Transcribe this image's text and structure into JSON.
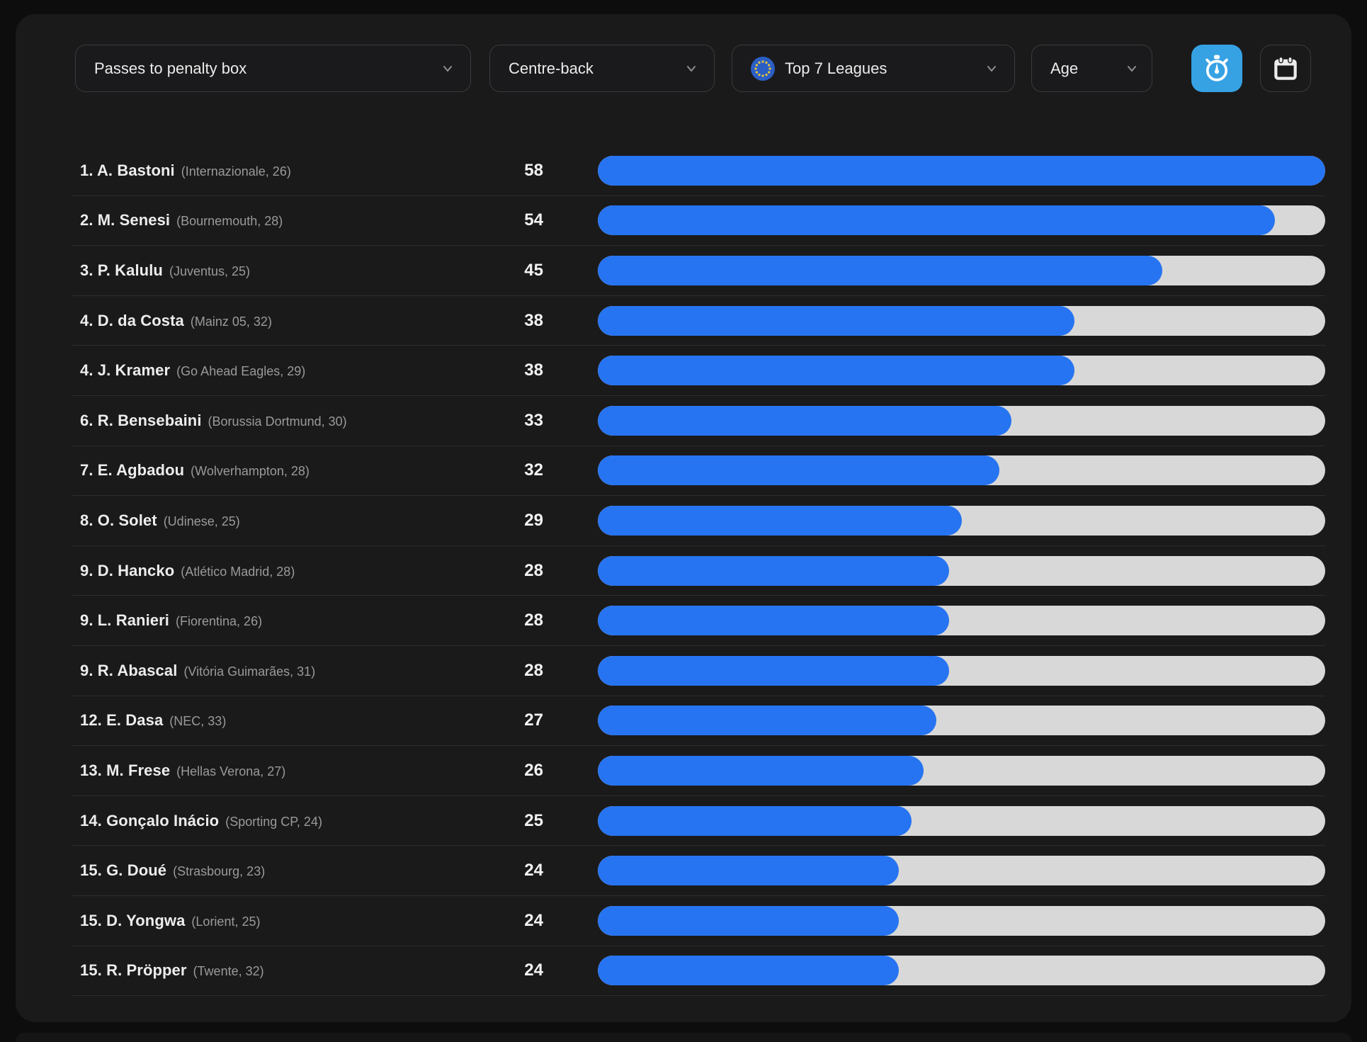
{
  "filters": {
    "metric_label": "Passes to penalty box",
    "position_label": "Centre-back",
    "league_label": "Top 7 Leagues",
    "age_label": "Age"
  },
  "icons": {
    "league_flag": "eu-flag-icon",
    "dropdown_chevron": "chevron-down-icon",
    "timer_button": "timer-icon",
    "calendar_button": "calendar-icon"
  },
  "colors": {
    "page_bg": "#0d0d0e",
    "card_bg": "#1a1a1b",
    "bar_fill": "#2674f1",
    "bar_track": "#d8d8d8",
    "active_button": "#36a2e4",
    "eu_flag_blue": "#2c5fc4",
    "divider": "#2c2d2f"
  },
  "leaderboard": {
    "max_value": 58,
    "players": [
      {
        "rank": "1.",
        "name": "A. Bastoni",
        "meta": "(Internazionale, 26)",
        "value": 58
      },
      {
        "rank": "2.",
        "name": "M. Senesi",
        "meta": "(Bournemouth, 28)",
        "value": 54
      },
      {
        "rank": "3.",
        "name": "P. Kalulu",
        "meta": "(Juventus, 25)",
        "value": 45
      },
      {
        "rank": "4.",
        "name": "D. da Costa",
        "meta": "(Mainz 05, 32)",
        "value": 38
      },
      {
        "rank": "4.",
        "name": "J. Kramer",
        "meta": "(Go Ahead Eagles, 29)",
        "value": 38
      },
      {
        "rank": "6.",
        "name": "R. Bensebaini",
        "meta": "(Borussia Dortmund, 30)",
        "value": 33
      },
      {
        "rank": "7.",
        "name": "E. Agbadou",
        "meta": "(Wolverhampton, 28)",
        "value": 32
      },
      {
        "rank": "8.",
        "name": "O. Solet",
        "meta": "(Udinese, 25)",
        "value": 29
      },
      {
        "rank": "9.",
        "name": "D. Hancko",
        "meta": "(Atlético Madrid, 28)",
        "value": 28
      },
      {
        "rank": "9.",
        "name": "L. Ranieri",
        "meta": "(Fiorentina, 26)",
        "value": 28
      },
      {
        "rank": "9.",
        "name": "R. Abascal",
        "meta": "(Vitória Guimarães, 31)",
        "value": 28
      },
      {
        "rank": "12.",
        "name": "E. Dasa",
        "meta": "(NEC, 33)",
        "value": 27
      },
      {
        "rank": "13.",
        "name": "M. Frese",
        "meta": "(Hellas Verona, 27)",
        "value": 26
      },
      {
        "rank": "14.",
        "name": "Gonçalo Inácio",
        "meta": "(Sporting CP, 24)",
        "value": 25
      },
      {
        "rank": "15.",
        "name": "G. Doué",
        "meta": "(Strasbourg, 23)",
        "value": 24
      },
      {
        "rank": "15.",
        "name": "D. Yongwa",
        "meta": "(Lorient, 25)",
        "value": 24
      },
      {
        "rank": "15.",
        "name": "R. Pröpper",
        "meta": "(Twente, 32)",
        "value": 24
      }
    ]
  },
  "chart_data": {
    "type": "bar",
    "orientation": "horizontal",
    "title": "Passes to penalty box — Centre-back — Top 7 Leagues",
    "categories": [
      "A. Bastoni",
      "M. Senesi",
      "P. Kalulu",
      "D. da Costa",
      "J. Kramer",
      "R. Bensebaini",
      "E. Agbadou",
      "O. Solet",
      "D. Hancko",
      "L. Ranieri",
      "R. Abascal",
      "E. Dasa",
      "M. Frese",
      "Gonçalo Inácio",
      "G. Doué",
      "D. Yongwa",
      "R. Pröpper"
    ],
    "values": [
      58,
      54,
      45,
      38,
      38,
      33,
      32,
      29,
      28,
      28,
      28,
      27,
      26,
      25,
      24,
      24,
      24
    ],
    "xlim": [
      0,
      58
    ],
    "grid": false,
    "legend": false
  }
}
